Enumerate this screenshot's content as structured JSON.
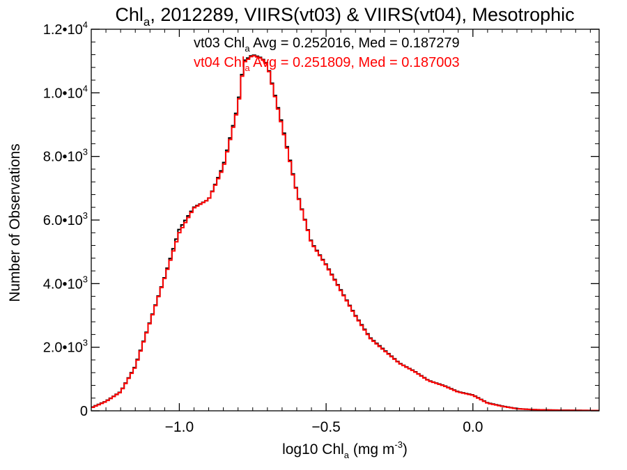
{
  "chart_data": {
    "type": "line",
    "step": true,
    "title": {
      "base": "Chl",
      "sub": "a",
      "rest": ", 2012289, VIIRS(vt03) & VIIRS(vt04), Mesotrophic"
    },
    "xlabel": {
      "base": "log10 Chl",
      "sub": "a",
      "mid": " (mg m",
      "sup": "-3",
      "end": ")"
    },
    "ylabel": "Number of Observations",
    "xlim": [
      -1.3,
      0.43
    ],
    "ylim": [
      0,
      12000
    ],
    "x_ticks": [
      {
        "value": -1.0,
        "label": "−1.0"
      },
      {
        "value": -0.5,
        "label": "−0.5"
      },
      {
        "value": 0.0,
        "label": "0.0"
      }
    ],
    "y_ticks": [
      {
        "value": 0,
        "base": "0",
        "exp": ""
      },
      {
        "value": 2000,
        "base": "2.0•10",
        "exp": "3"
      },
      {
        "value": 4000,
        "base": "4.0•10",
        "exp": "3"
      },
      {
        "value": 6000,
        "base": "6.0•10",
        "exp": "3"
      },
      {
        "value": 8000,
        "base": "8.0•10",
        "exp": "3"
      },
      {
        "value": 10000,
        "base": "1.0•10",
        "exp": "4"
      },
      {
        "value": 12000,
        "base": "1.2•10",
        "exp": "4"
      }
    ],
    "annotations": [
      {
        "series": "vt03",
        "pre": "vt03 Chl",
        "sub": "a",
        "post": " Avg = 0.252016, Med = 0.187279",
        "color": "#000000"
      },
      {
        "series": "vt04",
        "pre": "vt04 Chl",
        "sub": "a",
        "post": " Avg = 0.251809, Med = 0.187003",
        "color": "#ff0000"
      }
    ],
    "x": [
      -1.3,
      -1.25,
      -1.2,
      -1.15,
      -1.1,
      -1.05,
      -1.0,
      -0.95,
      -0.9,
      -0.85,
      -0.8,
      -0.78,
      -0.75,
      -0.72,
      -0.7,
      -0.65,
      -0.6,
      -0.55,
      -0.5,
      -0.45,
      -0.4,
      -0.35,
      -0.3,
      -0.25,
      -0.2,
      -0.15,
      -0.1,
      -0.05,
      0.0,
      0.05,
      0.1,
      0.15,
      0.2,
      0.3,
      0.43
    ],
    "series": [
      {
        "name": "vt03",
        "color": "#000000",
        "values": [
          100,
          300,
          600,
          1400,
          2800,
          4200,
          5700,
          6400,
          6650,
          7700,
          9600,
          11000,
          11200,
          11100,
          10900,
          9000,
          6900,
          5300,
          4600,
          3800,
          3000,
          2300,
          1900,
          1500,
          1250,
          950,
          800,
          600,
          500,
          250,
          150,
          70,
          40,
          20,
          10
        ]
      },
      {
        "name": "vt04",
        "color": "#ff0000",
        "values": [
          90,
          290,
          590,
          1380,
          2780,
          4180,
          5600,
          6380,
          6650,
          7650,
          9550,
          10950,
          11180,
          11080,
          10880,
          8950,
          6880,
          5280,
          4580,
          3780,
          2980,
          2280,
          1880,
          1490,
          1240,
          940,
          790,
          590,
          490,
          240,
          140,
          65,
          38,
          18,
          10
        ]
      }
    ]
  }
}
